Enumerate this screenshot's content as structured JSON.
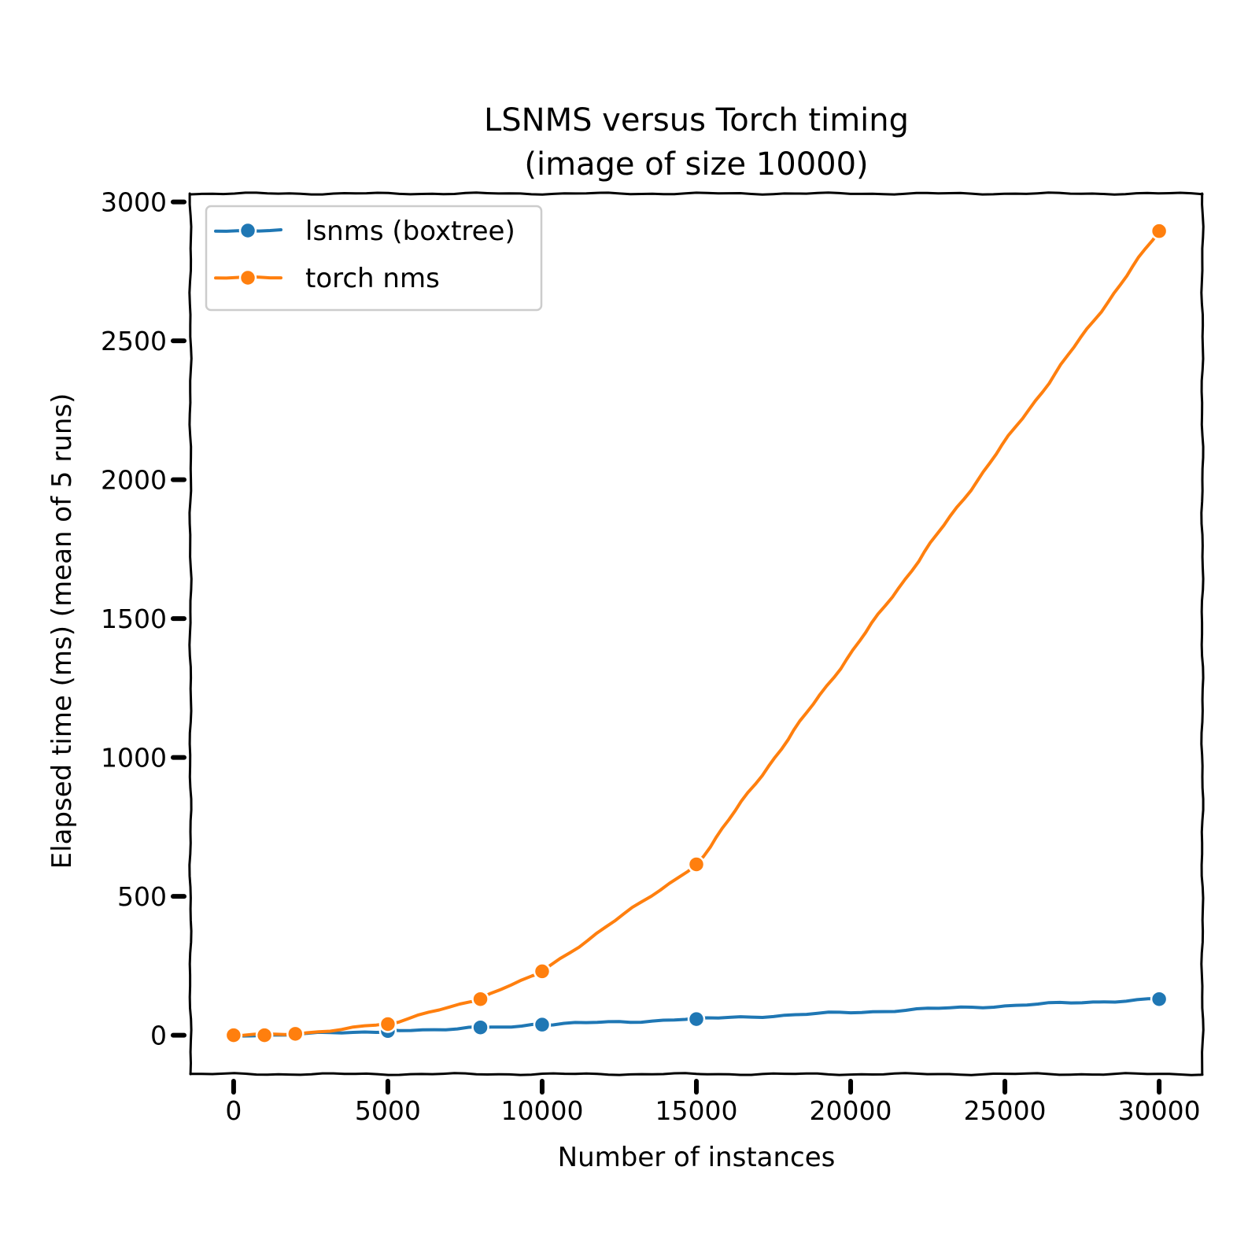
{
  "chart_data": {
    "type": "line",
    "title": "LSNMS versus Torch timing",
    "subtitle": "(image of size 10000)",
    "xlabel": "Number of instances",
    "ylabel": "Elapsed time (ms) (mean of 5 runs)",
    "xlim": [
      -1400,
      31400
    ],
    "ylim": [
      -140,
      3030
    ],
    "xticks": [
      0,
      5000,
      10000,
      15000,
      20000,
      25000,
      30000
    ],
    "xtick_labels": [
      "0",
      "5000",
      "10000",
      "15000",
      "20000",
      "25000",
      "30000"
    ],
    "yticks": [
      0,
      500,
      1000,
      1500,
      2000,
      2500,
      3000
    ],
    "ytick_labels": [
      "0",
      "500",
      "1000",
      "1500",
      "2000",
      "2500",
      "3000"
    ],
    "grid": false,
    "legend_position": "top-left",
    "series": [
      {
        "name": "lsnms (boxtree)",
        "color": "#1f77b4",
        "x": [
          0,
          1000,
          2000,
          5000,
          8000,
          10000,
          15000,
          30000
        ],
        "y": [
          0,
          1,
          3,
          15,
          28,
          38,
          58,
          130
        ]
      },
      {
        "name": "torch nms",
        "color": "#ff7f0e",
        "x": [
          0,
          1000,
          2000,
          5000,
          8000,
          10000,
          15000,
          30000
        ],
        "y": [
          0,
          0,
          5,
          40,
          130,
          230,
          615,
          2895
        ]
      }
    ]
  }
}
